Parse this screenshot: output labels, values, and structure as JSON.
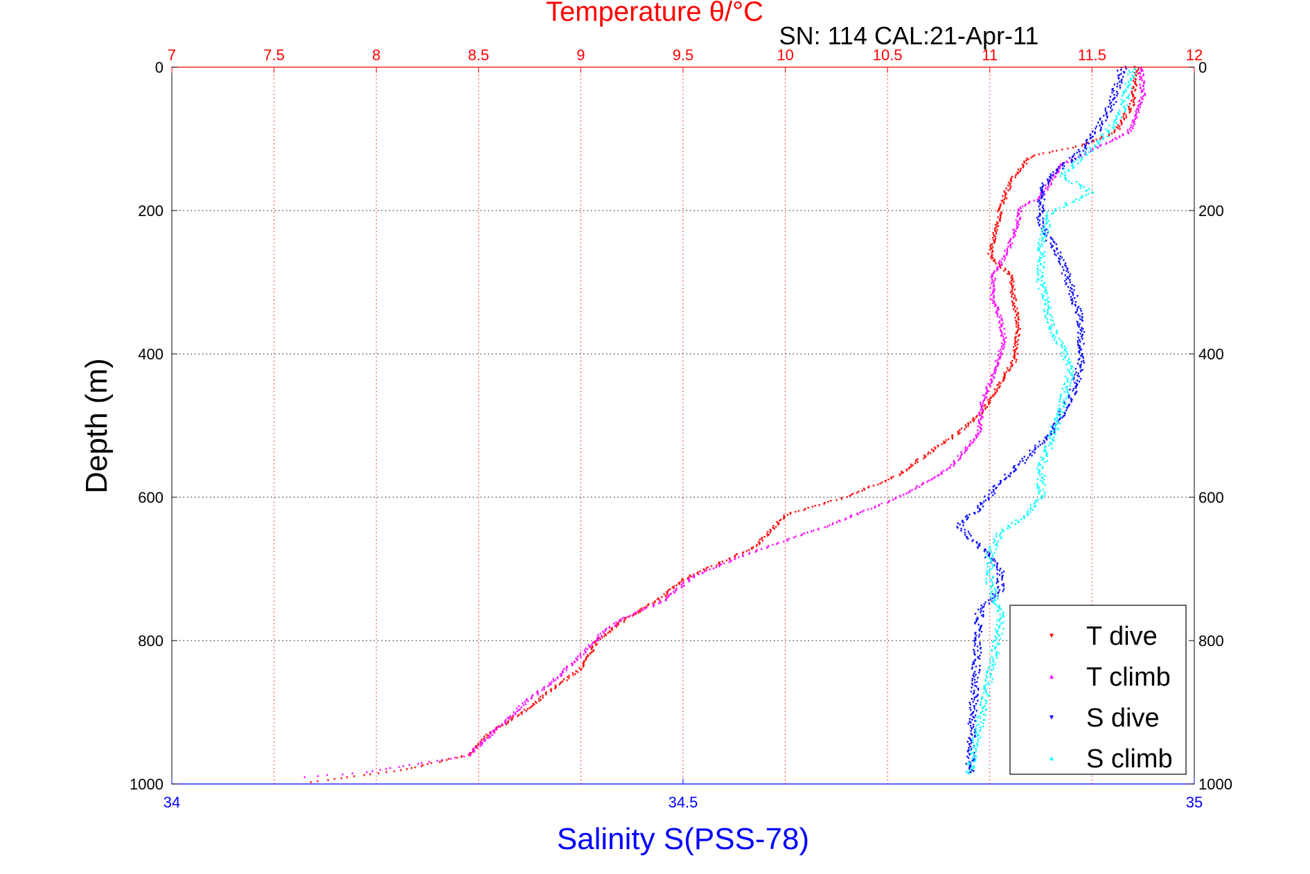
{
  "chart_data": {
    "type": "scatter",
    "title": "Temperature θ/°C",
    "subtitle": "SN: 114  CAL:21-Apr-11",
    "ylabel": "Depth (m)",
    "xlabel": "Salinity S(PSS-78)",
    "depth_axis": {
      "range": [
        0,
        1000
      ],
      "ticks": [
        0,
        200,
        400,
        600,
        800,
        1000
      ],
      "reversed": true
    },
    "temperature_axis": {
      "range": [
        7,
        12
      ],
      "ticks": [
        7,
        7.5,
        8,
        8.5,
        9,
        9.5,
        10,
        10.5,
        11,
        11.5,
        12
      ],
      "tick_labels": [
        "7",
        "7.5",
        "8",
        "8.5",
        "9",
        "9.5",
        "10",
        "10.5",
        "11",
        "11.5",
        "12"
      ],
      "color": "#ff0000",
      "grid": true
    },
    "salinity_axis": {
      "range": [
        34,
        35
      ],
      "ticks": [
        34,
        34.5,
        35
      ],
      "tick_labels": [
        "34",
        "34.5",
        "35"
      ],
      "color": "#0000ff"
    },
    "depth_grid": true,
    "legend_position": "bottom-right",
    "series": [
      {
        "name": "T dive",
        "axis": "temperature",
        "color": "#ff0000",
        "marker": "triangle-down",
        "points": [
          [
            11.72,
            0
          ],
          [
            11.7,
            50
          ],
          [
            11.62,
            90
          ],
          [
            11.45,
            110
          ],
          [
            11.2,
            125
          ],
          [
            11.1,
            160
          ],
          [
            11.05,
            200
          ],
          [
            11.02,
            240
          ],
          [
            11.0,
            265
          ],
          [
            11.1,
            290
          ],
          [
            11.12,
            330
          ],
          [
            11.14,
            360
          ],
          [
            11.12,
            410
          ],
          [
            11.05,
            440
          ],
          [
            10.97,
            480
          ],
          [
            10.85,
            510
          ],
          [
            10.72,
            535
          ],
          [
            10.55,
            570
          ],
          [
            10.3,
            600
          ],
          [
            10.0,
            625
          ],
          [
            9.92,
            650
          ],
          [
            9.85,
            670
          ],
          [
            9.7,
            690
          ],
          [
            9.5,
            715
          ],
          [
            9.4,
            740
          ],
          [
            9.22,
            770
          ],
          [
            9.08,
            800
          ],
          [
            9.0,
            840
          ],
          [
            8.85,
            870
          ],
          [
            8.72,
            900
          ],
          [
            8.55,
            930
          ],
          [
            8.45,
            960
          ],
          [
            8.15,
            980
          ],
          [
            7.68,
            998
          ]
        ]
      },
      {
        "name": "T climb",
        "axis": "temperature",
        "color": "#ff00ff",
        "marker": "triangle-up",
        "points": [
          [
            11.74,
            0
          ],
          [
            11.75,
            40
          ],
          [
            11.68,
            90
          ],
          [
            11.5,
            115
          ],
          [
            11.35,
            135
          ],
          [
            11.25,
            180
          ],
          [
            11.15,
            195
          ],
          [
            11.12,
            230
          ],
          [
            11.08,
            260
          ],
          [
            11.02,
            290
          ],
          [
            11.01,
            320
          ],
          [
            11.05,
            350
          ],
          [
            11.07,
            380
          ],
          [
            11.05,
            400
          ],
          [
            11.0,
            440
          ],
          [
            10.96,
            470
          ],
          [
            10.95,
            510
          ],
          [
            10.8,
            560
          ],
          [
            10.55,
            600
          ],
          [
            10.2,
            640
          ],
          [
            10.0,
            660
          ],
          [
            9.8,
            680
          ],
          [
            9.55,
            710
          ],
          [
            9.4,
            745
          ],
          [
            9.2,
            770
          ],
          [
            9.1,
            790
          ],
          [
            9.0,
            820
          ],
          [
            8.85,
            860
          ],
          [
            8.75,
            880
          ],
          [
            8.6,
            920
          ],
          [
            8.45,
            960
          ],
          [
            7.95,
            983
          ],
          [
            7.65,
            990
          ]
        ]
      },
      {
        "name": "S dive",
        "axis": "salinity",
        "color": "#0000ff",
        "marker": "triangle-down",
        "points": [
          [
            34.93,
            0
          ],
          [
            34.92,
            50
          ],
          [
            34.9,
            100
          ],
          [
            34.88,
            130
          ],
          [
            34.86,
            150
          ],
          [
            34.85,
            175
          ],
          [
            34.85,
            220
          ],
          [
            34.87,
            270
          ],
          [
            34.88,
            310
          ],
          [
            34.89,
            360
          ],
          [
            34.89,
            410
          ],
          [
            34.88,
            460
          ],
          [
            34.86,
            510
          ],
          [
            34.84,
            540
          ],
          [
            34.81,
            580
          ],
          [
            34.79,
            615
          ],
          [
            34.77,
            640
          ],
          [
            34.79,
            670
          ],
          [
            34.81,
            700
          ],
          [
            34.81,
            730
          ],
          [
            34.79,
            760
          ],
          [
            34.78,
            985
          ]
        ]
      },
      {
        "name": "S climb",
        "axis": "salinity",
        "color": "#00ffff",
        "marker": "triangle-up",
        "points": [
          [
            34.94,
            0
          ],
          [
            34.93,
            60
          ],
          [
            34.91,
            100
          ],
          [
            34.87,
            150
          ],
          [
            34.9,
            175
          ],
          [
            34.86,
            200
          ],
          [
            34.85,
            250
          ],
          [
            34.85,
            300
          ],
          [
            34.86,
            360
          ],
          [
            34.88,
            420
          ],
          [
            34.87,
            470
          ],
          [
            34.86,
            520
          ],
          [
            34.85,
            560
          ],
          [
            34.85,
            600
          ],
          [
            34.83,
            630
          ],
          [
            34.81,
            650
          ],
          [
            34.8,
            680
          ],
          [
            34.8,
            720
          ],
          [
            34.81,
            760
          ],
          [
            34.81,
            780
          ],
          [
            34.78,
            985
          ]
        ]
      }
    ]
  }
}
